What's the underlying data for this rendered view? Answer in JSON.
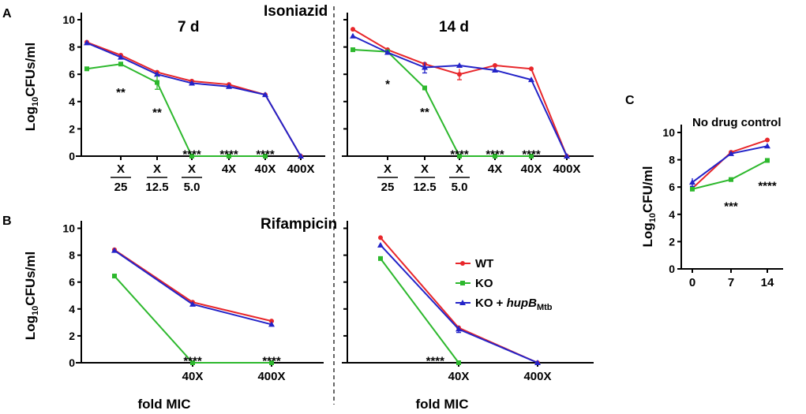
{
  "chart_data": {
    "panels": {
      "A": "A",
      "B": "B",
      "C": "C"
    },
    "titles": {
      "isoniazid": "Isoniazid",
      "rifampicin": "Rifampicin",
      "d7": "7 d",
      "d14": "14 d",
      "nodrug": "No drug control"
    },
    "ylabel": "Log10CFUs/ml",
    "ylabel_c": "Log10CFU/ml",
    "xlabel": "fold MIC",
    "yticks": [
      0,
      2,
      4,
      6,
      8,
      10
    ],
    "ylim": [
      0,
      10
    ],
    "colors": {
      "WT": "#e8262a",
      "KO": "#2db82d",
      "KO + hupBMtb": "#2323c8"
    },
    "legend": [
      "WT",
      "KO",
      "KO + hupBMtb"
    ],
    "legend_parts": {
      "ko_comp": "KO + ",
      "gene": "hupB",
      "sub": "Mtb"
    },
    "isoniazid_categories": [
      "",
      "X/25",
      "X/12.5",
      "X/5.0",
      "4X",
      "40X",
      "400X"
    ],
    "isoniazid_category_display": [
      {
        "num": "",
        "den": ""
      },
      {
        "num": "X",
        "den": "25"
      },
      {
        "num": "X",
        "den": "12.5"
      },
      {
        "num": "X",
        "den": "5.0"
      },
      {
        "num": "4X",
        "den": ""
      },
      {
        "num": "40X",
        "den": ""
      },
      {
        "num": "400X",
        "den": ""
      }
    ],
    "charts": [
      {
        "id": "inh7",
        "type": "line",
        "categories": [
          "",
          "X/25",
          "X/12.5",
          "X/5.0",
          "4X",
          "40X",
          "400X"
        ],
        "series": [
          {
            "name": "WT",
            "values": [
              8.35,
              7.4,
              6.15,
              5.5,
              5.25,
              4.5,
              0
            ]
          },
          {
            "name": "KO",
            "values": [
              6.4,
              6.75,
              5.4,
              0,
              0,
              0,
              null
            ]
          },
          {
            "name": "KO + hupBMtb",
            "values": [
              8.3,
              7.25,
              6.0,
              5.35,
              5.1,
              4.5,
              0
            ]
          }
        ],
        "annotations": [
          {
            "cat": 1,
            "y": 5.1,
            "text": "**"
          },
          {
            "cat": 2,
            "y": 3.6,
            "text": "**"
          },
          {
            "cat": 3,
            "y": 0.55,
            "text": "****"
          },
          {
            "cat": 4,
            "y": 0.55,
            "text": "****"
          },
          {
            "cat": 5,
            "y": 0.55,
            "text": "****"
          }
        ]
      },
      {
        "id": "inh14",
        "type": "line",
        "categories": [
          "",
          "X/25",
          "X/12.5",
          "X/5.0",
          "4X",
          "40X",
          "400X"
        ],
        "series": [
          {
            "name": "WT",
            "values": [
              9.3,
              7.8,
              6.75,
              6.0,
              6.65,
              6.4,
              0
            ]
          },
          {
            "name": "KO",
            "values": [
              7.8,
              7.65,
              5.0,
              0,
              0,
              0,
              null
            ]
          },
          {
            "name": "KO + hupBMtb",
            "values": [
              8.8,
              7.6,
              6.5,
              6.65,
              6.3,
              5.6,
              0
            ]
          }
        ],
        "annotations": [
          {
            "cat": 1,
            "y": 5.7,
            "text": "*"
          },
          {
            "cat": 2,
            "y": 3.65,
            "text": "**"
          },
          {
            "cat": 3,
            "y": 0.55,
            "text": "****"
          },
          {
            "cat": 4,
            "y": 0.55,
            "text": "****"
          },
          {
            "cat": 5,
            "y": 0.55,
            "text": "****"
          }
        ]
      },
      {
        "id": "rif7",
        "type": "line",
        "categories": [
          "",
          "40X",
          "400X"
        ],
        "series": [
          {
            "name": "WT",
            "values": [
              8.4,
              4.5,
              3.1
            ]
          },
          {
            "name": "KO",
            "values": [
              6.45,
              0,
              0
            ]
          },
          {
            "name": "KO + hupBMtb",
            "values": [
              8.35,
              4.35,
              2.85
            ]
          }
        ],
        "annotations": [
          {
            "cat": 1,
            "y": 0.55,
            "text": "****"
          },
          {
            "cat": 2,
            "y": 0.55,
            "text": "****"
          }
        ]
      },
      {
        "id": "rif14",
        "type": "line",
        "categories": [
          "",
          "40X",
          "400X"
        ],
        "series": [
          {
            "name": "WT",
            "values": [
              9.3,
              2.6,
              0
            ]
          },
          {
            "name": "KO",
            "values": [
              7.75,
              0,
              null
            ]
          },
          {
            "name": "KO + hupBMtb",
            "values": [
              8.75,
              2.5,
              0
            ]
          }
        ],
        "annotations": [
          {
            "cat": 0.7,
            "y": 0.55,
            "text": "****"
          }
        ]
      },
      {
        "id": "nodrug",
        "type": "line",
        "categories": [
          "0",
          "7",
          "14"
        ],
        "series": [
          {
            "name": "WT",
            "values": [
              5.9,
              8.55,
              9.45
            ]
          },
          {
            "name": "KO",
            "values": [
              5.85,
              6.55,
              7.95
            ]
          },
          {
            "name": "KO + hupBMtb",
            "values": [
              6.35,
              8.45,
              9.0
            ]
          }
        ],
        "annotations": [
          {
            "cat": 1,
            "y": 5.0,
            "text": "***"
          },
          {
            "cat": 2,
            "y": 6.5,
            "text": "****"
          }
        ]
      }
    ]
  }
}
